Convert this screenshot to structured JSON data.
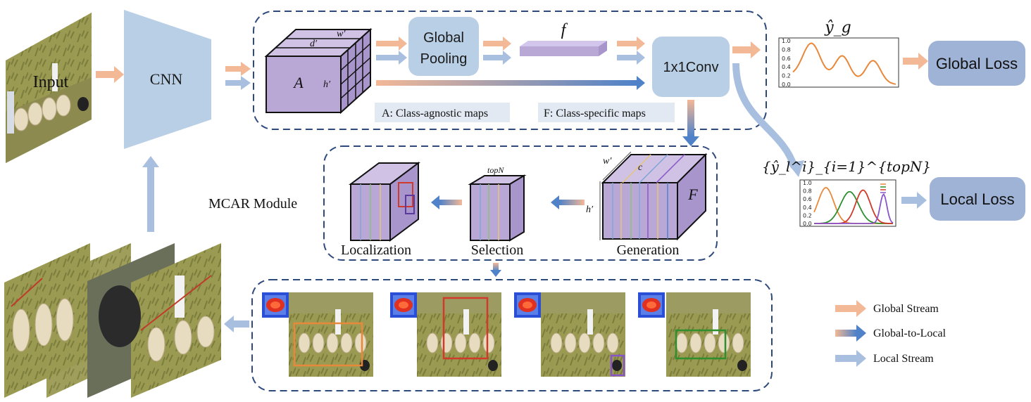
{
  "input_label": "Input",
  "cnn_label": "CNN",
  "global_pooling_label": "Global\nPooling",
  "conv_label": "1x1Conv",
  "feature_vector_label": "f",
  "map_a_label": "A",
  "map_f_label": "F",
  "dim_d": "d′",
  "dim_w": "w′",
  "dim_h": "h′",
  "dim_c": "c",
  "topn_label": "topN",
  "class_agnostic_tag": "A: Class-agnostic maps",
  "class_specific_tag": "F: Class-specific maps",
  "module_label": "MCAR Module",
  "stage_localization": "Localization",
  "stage_selection": "Selection",
  "stage_generation": "Generation",
  "global_output_label": "ŷ_g",
  "local_output_label": "{ŷ_l^i}_{i=1}^{topN}",
  "global_loss_label": "Global Loss",
  "local_loss_label": "Local Loss",
  "legend": {
    "global_stream": "Global Stream",
    "global_to_local": "Global-to-Local",
    "local_stream": "Local Stream"
  },
  "colors": {
    "global_stream": "#f3b896",
    "local_stream": "#a9bfe0",
    "box_fill": "#b8cfe6",
    "loss_fill": "#9fb3d6",
    "cube_fill": "#b9a8d6",
    "dashed_border": "#2e4a7d"
  },
  "global_chart_yticks": [
    "1.0",
    "0.8",
    "0.6",
    "0.4",
    "0.2",
    "0.0"
  ],
  "local_chart_yticks": [
    "1.0",
    "0.8",
    "0.6",
    "0.4",
    "0.2",
    "0.0"
  ]
}
